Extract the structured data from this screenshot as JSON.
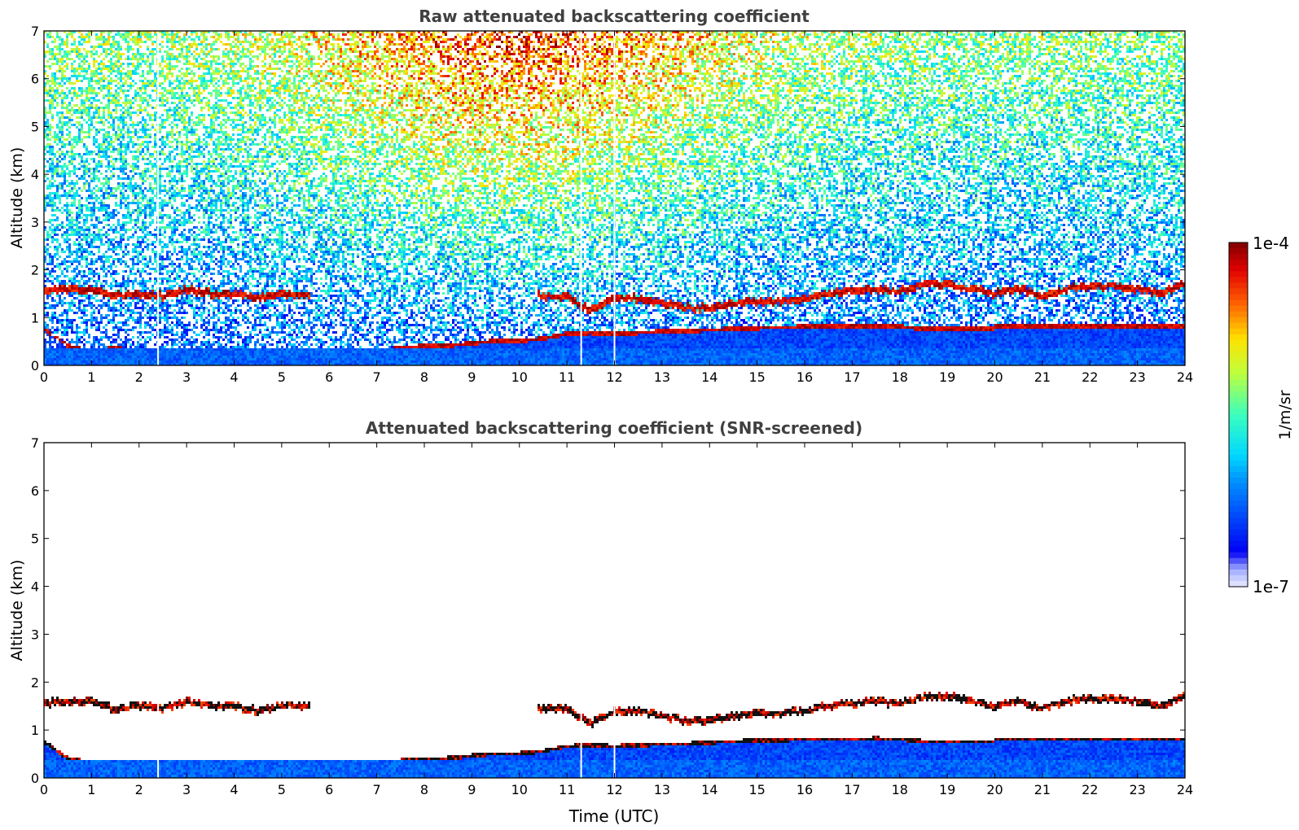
{
  "chart_data": [
    {
      "type": "heatmap",
      "title": "Raw attenuated backscattering coefficient",
      "xlabel": "",
      "ylabel": "Altitude (km)",
      "xlim": [
        0,
        24
      ],
      "ylim": [
        0,
        7
      ],
      "xticks": [
        "0",
        "1",
        "2",
        "3",
        "4",
        "5",
        "6",
        "7",
        "8",
        "9",
        "10",
        "11",
        "12",
        "13",
        "14",
        "15",
        "16",
        "17",
        "18",
        "19",
        "20",
        "21",
        "22",
        "23",
        "24"
      ],
      "yticks": [
        "0",
        "1",
        "2",
        "3",
        "4",
        "5",
        "6",
        "7"
      ],
      "screened": false,
      "cloud_layer_km": [
        [
          0,
          1.55
        ],
        [
          0.5,
          1.6
        ],
        [
          1,
          1.6
        ],
        [
          1.5,
          1.45
        ],
        [
          2,
          1.5
        ],
        [
          2.5,
          1.45
        ],
        [
          3,
          1.6
        ],
        [
          3.5,
          1.5
        ],
        [
          4,
          1.5
        ],
        [
          4.5,
          1.4
        ],
        [
          5,
          1.5
        ],
        [
          5.5,
          1.5
        ],
        [
          10.5,
          1.45
        ],
        [
          11,
          1.45
        ],
        [
          11.5,
          1.15
        ],
        [
          12,
          1.4
        ],
        [
          12.5,
          1.4
        ],
        [
          13,
          1.3
        ],
        [
          13.5,
          1.2
        ],
        [
          14,
          1.2
        ],
        [
          14.5,
          1.3
        ],
        [
          15,
          1.35
        ],
        [
          15.5,
          1.35
        ],
        [
          16,
          1.4
        ],
        [
          16.5,
          1.5
        ],
        [
          17,
          1.55
        ],
        [
          17.5,
          1.6
        ],
        [
          18,
          1.55
        ],
        [
          18.5,
          1.7
        ],
        [
          19,
          1.7
        ],
        [
          19.5,
          1.6
        ],
        [
          20,
          1.5
        ],
        [
          20.5,
          1.6
        ],
        [
          21,
          1.45
        ],
        [
          21.5,
          1.6
        ],
        [
          22,
          1.65
        ],
        [
          22.5,
          1.65
        ],
        [
          23,
          1.6
        ],
        [
          23.5,
          1.5
        ],
        [
          24,
          1.7
        ]
      ],
      "boundary_layer_top_km": [
        [
          0,
          0.8
        ],
        [
          0.5,
          0.45
        ],
        [
          1,
          0.35
        ],
        [
          1.5,
          0.4
        ],
        [
          2,
          0.35
        ],
        [
          2.5,
          0.3
        ],
        [
          3,
          0.25
        ],
        [
          3.5,
          0.25
        ],
        [
          4,
          0.25
        ],
        [
          4.5,
          0.25
        ],
        [
          5,
          0.28
        ],
        [
          5.5,
          0.3
        ],
        [
          6,
          0.32
        ],
        [
          6.5,
          0.33
        ],
        [
          7,
          0.35
        ],
        [
          7.5,
          0.4
        ],
        [
          8,
          0.45
        ],
        [
          8.5,
          0.45
        ],
        [
          9,
          0.5
        ],
        [
          9.5,
          0.55
        ],
        [
          10,
          0.55
        ],
        [
          10.5,
          0.6
        ],
        [
          11,
          0.7
        ],
        [
          11.5,
          0.72
        ],
        [
          12,
          0.7
        ],
        [
          12.5,
          0.72
        ],
        [
          13,
          0.75
        ],
        [
          13.5,
          0.75
        ],
        [
          14,
          0.78
        ],
        [
          14.5,
          0.8
        ],
        [
          15,
          0.82
        ],
        [
          15.5,
          0.83
        ],
        [
          16,
          0.85
        ],
        [
          16.5,
          0.85
        ],
        [
          17,
          0.85
        ],
        [
          17.5,
          0.86
        ],
        [
          18,
          0.85
        ],
        [
          18.5,
          0.8
        ],
        [
          19,
          0.8
        ],
        [
          19.5,
          0.8
        ],
        [
          20,
          0.8
        ]
      ]
    },
    {
      "type": "heatmap",
      "title": "Attenuated backscattering coefficient (SNR-screened)",
      "xlabel": "Time (UTC)",
      "ylabel": "Altitude (km)",
      "xlim": [
        0,
        24
      ],
      "ylim": [
        0,
        7
      ],
      "xticks": [
        "0",
        "1",
        "2",
        "3",
        "4",
        "5",
        "6",
        "7",
        "8",
        "9",
        "10",
        "11",
        "12",
        "13",
        "14",
        "15",
        "16",
        "17",
        "18",
        "19",
        "20",
        "21",
        "22",
        "23",
        "24"
      ],
      "yticks": [
        "0",
        "1",
        "2",
        "3",
        "4",
        "5",
        "6",
        "7"
      ],
      "screened": true
    }
  ],
  "colorbar": {
    "label": "1/m/sr",
    "max_label": "1e-4",
    "min_label": "1e-7",
    "log_min": -7,
    "log_max": -4
  },
  "colors": {
    "axis": "#000000",
    "title": "#404040",
    "cloud_dark": "#111111"
  }
}
